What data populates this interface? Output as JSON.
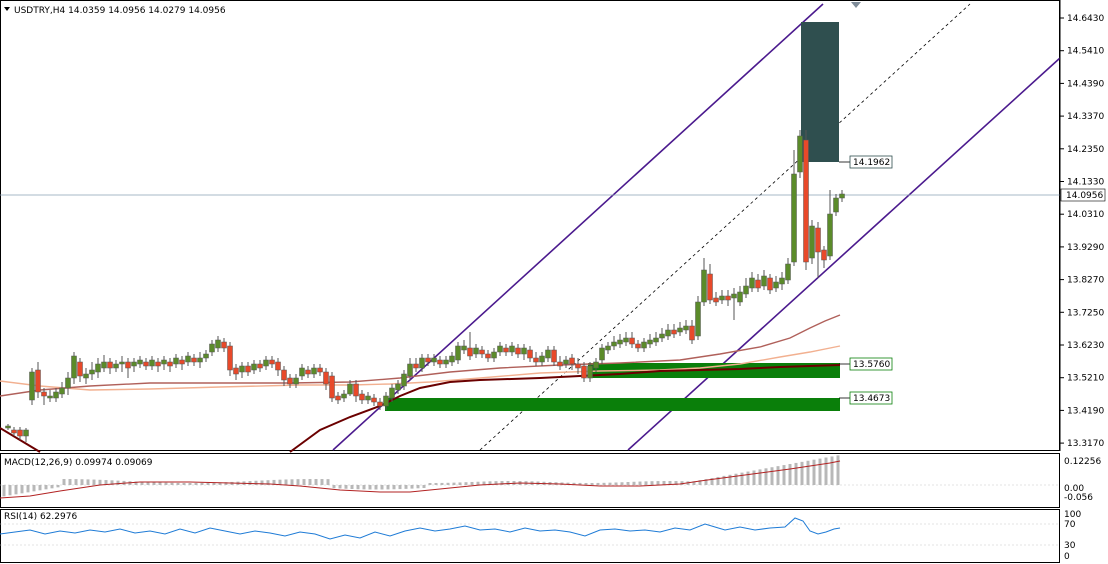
{
  "header": {
    "symbol_line": "USDTRY,H4  14.0359 14.0956 14.0279 14.0956"
  },
  "price_axis": {
    "ticks": [
      "14.6430",
      "14.5410",
      "14.4390",
      "14.3370",
      "14.2350",
      "14.1330",
      "14.0310",
      "13.9290",
      "13.8270",
      "13.7250",
      "13.6230",
      "13.5210",
      "13.4190",
      "13.3170"
    ],
    "current_price": "14.0956"
  },
  "levels": {
    "upper": "14.1962",
    "mid": "13.5760",
    "lower": "13.4673"
  },
  "macd": {
    "label": "MACD(12,26,9) 0.09974 0.09069",
    "ticks": [
      "0.12256",
      "0.00",
      "-0.056"
    ]
  },
  "rsi": {
    "label": "RSI(14) 62.2976",
    "ticks": [
      "100",
      "70",
      "30",
      "0"
    ]
  },
  "colors": {
    "bull": "#5b8b2a",
    "bear": "#e8492a",
    "channel": "#4b1a8e",
    "zone_green": "#0a7f0a",
    "zone_dark": "#2f4f4f",
    "ma_dark": "#6b0000",
    "ma_mid": "#b0605a",
    "ma_light": "#f2b090",
    "macd_signal": "#b22222",
    "macd_hist": "#b8b8b8",
    "rsi_line": "#1e7bd6"
  }
}
